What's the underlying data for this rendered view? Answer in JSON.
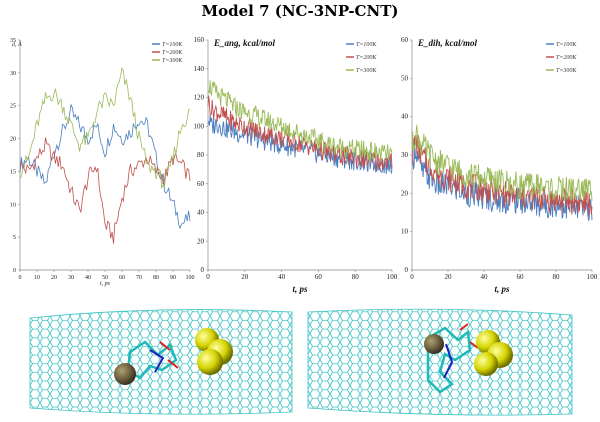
{
  "title": "Model 7 (NC-3NP-CNT)",
  "colors": {
    "T100": "#4a7ec0",
    "T200": "#c0504d",
    "T300": "#9bbb59",
    "tube": "#3fc3c3",
    "sphere": "#d8d800"
  },
  "chart_data": [
    {
      "type": "line",
      "ylabel": "d, Å",
      "xlabel": "t, ps",
      "xlim": [
        0,
        100
      ],
      "ylim": [
        0,
        35
      ],
      "xticks": [
        "0",
        "10",
        "20",
        "30",
        "40",
        "50",
        "60",
        "70",
        "80",
        "90",
        "100"
      ],
      "yticks": [
        "0",
        "5",
        "10",
        "15",
        "20",
        "25",
        "30",
        "35"
      ],
      "legend": [
        "T=100K",
        "T=200K",
        "T=300K"
      ],
      "legend_position": "top-right",
      "series": [
        {
          "name": "T=100K",
          "x": [
            0,
            5,
            10,
            15,
            20,
            25,
            30,
            35,
            40,
            45,
            50,
            55,
            60,
            65,
            70,
            75,
            80,
            85,
            90,
            95,
            100
          ],
          "y": [
            16,
            17,
            15,
            13,
            18,
            21,
            24,
            22,
            20,
            22,
            18,
            22,
            20,
            21,
            23,
            22,
            17,
            13,
            10,
            7,
            8
          ]
        },
        {
          "name": "T=200K",
          "x": [
            0,
            5,
            10,
            15,
            20,
            25,
            30,
            35,
            40,
            45,
            50,
            55,
            60,
            65,
            70,
            75,
            80,
            85,
            90,
            95,
            100
          ],
          "y": [
            16,
            15,
            17,
            19,
            17,
            16,
            12,
            9,
            14,
            16,
            7,
            5,
            11,
            15,
            16,
            17,
            15,
            14,
            17,
            16,
            14
          ]
        },
        {
          "name": "T=300K",
          "x": [
            0,
            5,
            10,
            15,
            20,
            25,
            30,
            35,
            40,
            45,
            50,
            55,
            60,
            65,
            70,
            75,
            80,
            85,
            90,
            95,
            100
          ],
          "y": [
            15,
            17,
            22,
            26,
            27,
            25,
            22,
            19,
            20,
            24,
            26,
            25,
            30,
            26,
            20,
            16,
            15,
            13,
            17,
            22,
            24
          ]
        }
      ]
    },
    {
      "type": "line",
      "ylabel": "E_ang, kcal/mol",
      "xlabel": "t, ps",
      "xlim": [
        0,
        100
      ],
      "ylim": [
        0,
        160
      ],
      "xticks": [
        "0",
        "20",
        "40",
        "60",
        "80",
        "100"
      ],
      "yticks": [
        "0",
        "20",
        "40",
        "60",
        "80",
        "100",
        "120",
        "140",
        "160"
      ],
      "legend": [
        "T=100K",
        "T=200K",
        "T=300K"
      ],
      "legend_position": "top-right",
      "series": [
        {
          "name": "T=100K",
          "x": [
            0,
            2,
            5,
            10,
            15,
            20,
            30,
            40,
            50,
            60,
            70,
            80,
            90,
            100
          ],
          "y": [
            105,
            100,
            102,
            98,
            96,
            94,
            90,
            87,
            84,
            81,
            78,
            76,
            74,
            73
          ]
        },
        {
          "name": "T=200K",
          "x": [
            0,
            2,
            5,
            10,
            15,
            20,
            30,
            40,
            50,
            60,
            70,
            80,
            90,
            100
          ],
          "y": [
            118,
            112,
            110,
            106,
            102,
            100,
            95,
            92,
            88,
            84,
            80,
            78,
            76,
            75
          ]
        },
        {
          "name": "T=300K",
          "x": [
            0,
            2,
            5,
            10,
            15,
            20,
            30,
            40,
            50,
            60,
            70,
            80,
            90,
            100
          ],
          "y": [
            130,
            126,
            122,
            118,
            113,
            110,
            105,
            100,
            95,
            90,
            86,
            84,
            82,
            80
          ]
        }
      ]
    },
    {
      "type": "line",
      "ylabel": "E_dih, kcal/mol",
      "xlabel": "t, ps",
      "xlim": [
        0,
        100
      ],
      "ylim": [
        0,
        60
      ],
      "xticks": [
        "0",
        "20",
        "40",
        "60",
        "80",
        "100"
      ],
      "yticks": [
        "0",
        "10",
        "20",
        "30",
        "40",
        "50",
        "60"
      ],
      "legend": [
        "T=100K",
        "T=200K",
        "T=300K"
      ],
      "legend_position": "top-right",
      "series": [
        {
          "name": "T=100K",
          "x": [
            0,
            2,
            5,
            10,
            15,
            20,
            30,
            40,
            50,
            60,
            70,
            80,
            90,
            100
          ],
          "y": [
            28,
            32,
            26,
            24,
            22,
            22,
            20,
            19,
            18,
            18,
            17,
            17,
            16,
            16
          ]
        },
        {
          "name": "T=200K",
          "x": [
            0,
            2,
            5,
            10,
            15,
            20,
            30,
            40,
            50,
            60,
            70,
            80,
            90,
            100
          ],
          "y": [
            30,
            34,
            30,
            27,
            25,
            24,
            22,
            21,
            20,
            19,
            19,
            18,
            18,
            17
          ]
        },
        {
          "name": "T=300K",
          "x": [
            0,
            2,
            5,
            10,
            15,
            20,
            30,
            40,
            50,
            60,
            70,
            80,
            90,
            100
          ],
          "y": [
            32,
            36,
            33,
            30,
            28,
            27,
            25,
            24,
            23,
            22,
            22,
            21,
            21,
            21
          ]
        }
      ]
    }
  ]
}
